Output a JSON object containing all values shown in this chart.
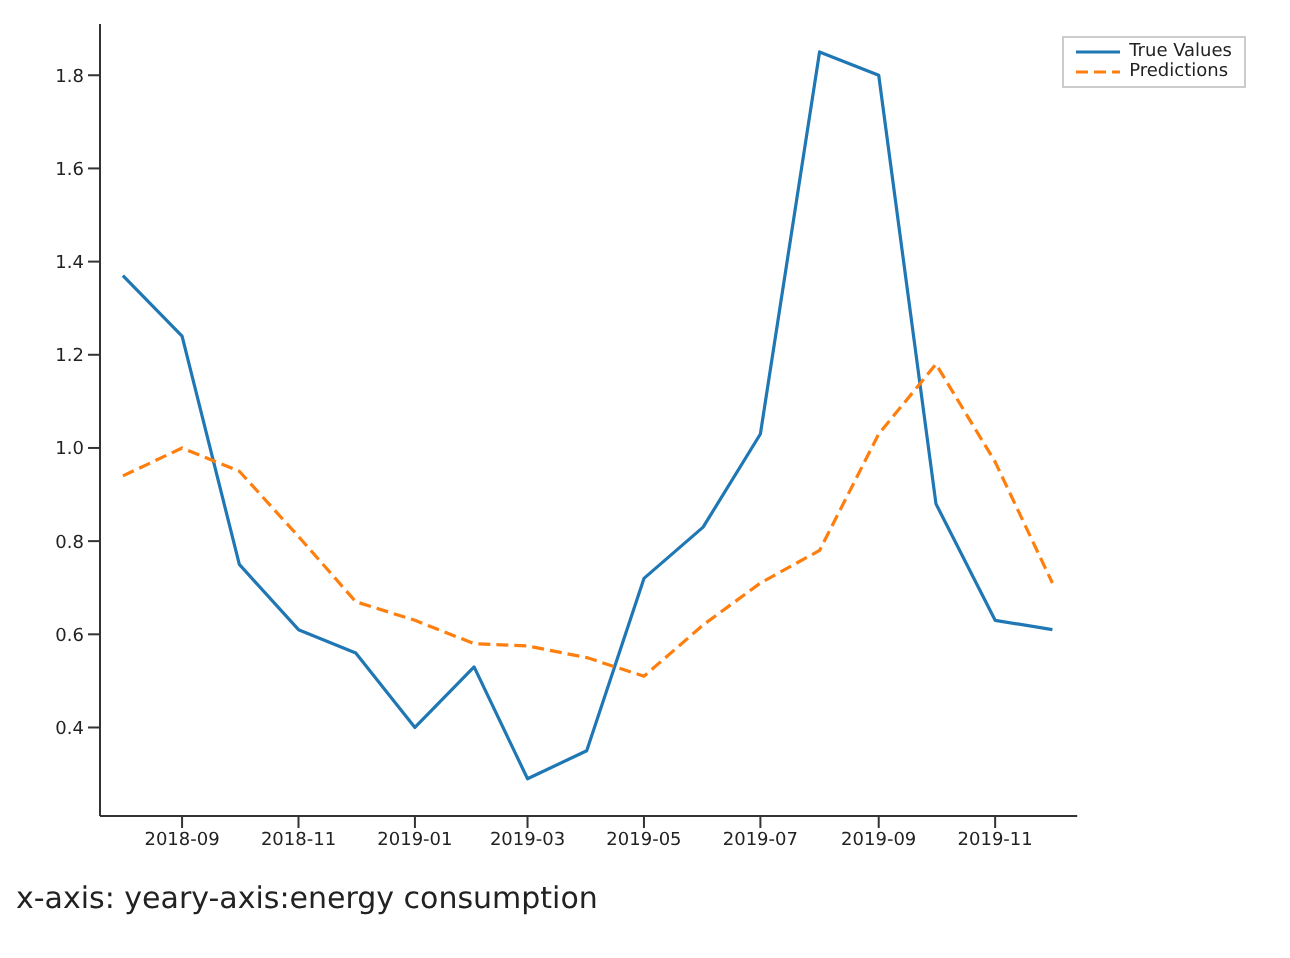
{
  "chart_data": {
    "type": "line",
    "x": [
      "2018-08",
      "2018-09",
      "2018-10",
      "2018-11",
      "2018-12",
      "2019-01",
      "2019-02",
      "2019-03",
      "2019-04",
      "2019-05",
      "2019-06",
      "2019-07",
      "2019-08",
      "2019-09",
      "2019-10",
      "2019-11",
      "2019-12"
    ],
    "series": [
      {
        "name": "True Values",
        "color": "#1f77b4",
        "line_style": "solid",
        "values": [
          1.37,
          1.24,
          0.75,
          0.61,
          0.56,
          0.4,
          0.53,
          0.29,
          0.35,
          0.72,
          0.83,
          1.03,
          1.85,
          1.8,
          0.88,
          0.63,
          0.61
        ]
      },
      {
        "name": "Predictions",
        "color": "#ff7f0e",
        "line_style": "dashed",
        "values": [
          0.94,
          1.0,
          0.95,
          0.81,
          0.67,
          0.63,
          0.58,
          0.575,
          0.55,
          0.51,
          0.62,
          0.71,
          0.78,
          1.03,
          1.18,
          0.97,
          0.71
        ]
      }
    ],
    "xlim": [
      "2018-07-20",
      "2019-12-14"
    ],
    "xticks": [
      "2018-09",
      "2018-11",
      "2019-01",
      "2019-03",
      "2019-05",
      "2019-07",
      "2019-09",
      "2019-11"
    ],
    "ylim": [
      0.21,
      1.91
    ],
    "yticks": [
      0.4,
      0.6,
      0.8,
      {
        "value": 1,
        "label": "1.0"
      },
      1.2,
      1.4,
      1.6,
      1.8
    ],
    "grid": false,
    "legend": "top right",
    "marker": "none",
    "annotations": [
      "x-axis: yeary-axis:energy consumption"
    ]
  }
}
